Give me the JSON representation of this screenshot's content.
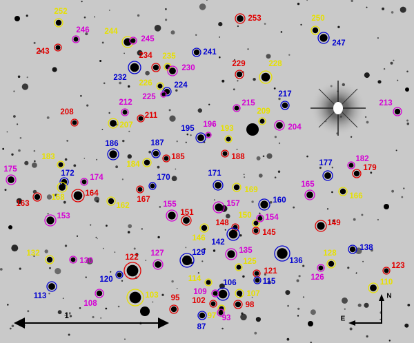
{
  "markers": [
    {
      "label": "252",
      "color": "#e6e000"
    },
    {
      "label": "246",
      "color": "#d400d4"
    },
    {
      "label": "243",
      "color": "#e00000"
    },
    {
      "label": "244",
      "color": "#e6e000"
    },
    {
      "label": "245",
      "color": "#d400d4"
    },
    {
      "label": "253",
      "color": "#e00000"
    },
    {
      "label": "250",
      "color": "#e6e000"
    },
    {
      "label": "247",
      "color": "#0000d0"
    },
    {
      "label": "241",
      "color": "#0000d0"
    },
    {
      "label": "234",
      "color": "#e00000"
    },
    {
      "label": "235",
      "color": "#e6e000"
    },
    {
      "label": "230",
      "color": "#d400d4"
    },
    {
      "label": "229",
      "color": "#e00000"
    },
    {
      "label": "228",
      "color": "#e6e000"
    },
    {
      "label": "232",
      "color": "#0000d0"
    },
    {
      "label": "226",
      "color": "#e6e000"
    },
    {
      "label": "224",
      "color": "#0000d0"
    },
    {
      "label": "225",
      "color": "#d400d4"
    },
    {
      "label": "217",
      "color": "#0000d0"
    },
    {
      "label": "215",
      "color": "#d400d4"
    },
    {
      "label": "212",
      "color": "#d400d4"
    },
    {
      "label": "208",
      "color": "#e00000"
    },
    {
      "label": "211",
      "color": "#e00000"
    },
    {
      "label": "209",
      "color": "#e6e000"
    },
    {
      "label": "204",
      "color": "#d400d4"
    },
    {
      "label": "213",
      "color": "#d400d4"
    },
    {
      "label": "207",
      "color": "#e6e000"
    },
    {
      "label": "196",
      "color": "#d400d4"
    },
    {
      "label": "195",
      "color": "#0000d0"
    },
    {
      "label": "193",
      "color": "#e6e000"
    },
    {
      "label": "186",
      "color": "#0000d0"
    },
    {
      "label": "187",
      "color": "#0000d0"
    },
    {
      "label": "185",
      "color": "#e00000"
    },
    {
      "label": "188",
      "color": "#e00000"
    },
    {
      "label": "183",
      "color": "#e6e000"
    },
    {
      "label": "184",
      "color": "#e6e000"
    },
    {
      "label": "177",
      "color": "#0000d0"
    },
    {
      "label": "182",
      "color": "#d400d4"
    },
    {
      "label": "179",
      "color": "#e00000"
    },
    {
      "label": "175",
      "color": "#d400d4"
    },
    {
      "label": "172",
      "color": "#0000d0"
    },
    {
      "label": "174",
      "color": "#d400d4"
    },
    {
      "label": "171",
      "color": "#0000d0"
    },
    {
      "label": "170",
      "color": "#0000d0"
    },
    {
      "label": "169",
      "color": "#e6e000"
    },
    {
      "label": "165",
      "color": "#d400d4"
    },
    {
      "label": "166",
      "color": "#e6e000"
    },
    {
      "label": "168",
      "color": "#e6e000"
    },
    {
      "label": "164",
      "color": "#e00000"
    },
    {
      "label": "163",
      "color": "#e00000"
    },
    {
      "label": "167",
      "color": "#e00000"
    },
    {
      "label": "162",
      "color": "#e6e000"
    },
    {
      "label": "160",
      "color": "#0000d0"
    },
    {
      "label": "155",
      "color": "#d400d4"
    },
    {
      "label": "151",
      "color": "#e00000"
    },
    {
      "label": "157",
      "color": "#d400d4"
    },
    {
      "label": "150",
      "color": "#e6e000"
    },
    {
      "label": "154",
      "color": "#d400d4"
    },
    {
      "label": "153",
      "color": "#d400d4"
    },
    {
      "label": "149",
      "color": "#e00000"
    },
    {
      "label": "148",
      "color": "#e00000"
    },
    {
      "label": "146",
      "color": "#e6e000"
    },
    {
      "label": "145",
      "color": "#e00000"
    },
    {
      "label": "142",
      "color": "#0000d0"
    },
    {
      "label": "135",
      "color": "#d400d4"
    },
    {
      "label": "136",
      "color": "#0000d0"
    },
    {
      "label": "138",
      "color": "#0000d0"
    },
    {
      "label": "128",
      "color": "#e6e000"
    },
    {
      "label": "132",
      "color": "#e6e000"
    },
    {
      "label": "130",
      "color": "#d400d4"
    },
    {
      "label": "122",
      "color": "#e00000"
    },
    {
      "label": "127",
      "color": "#d400d4"
    },
    {
      "label": "129",
      "color": "#0000d0"
    },
    {
      "label": "125",
      "color": "#e6e000"
    },
    {
      "label": "126",
      "color": "#d400d4"
    },
    {
      "label": "121",
      "color": "#e00000"
    },
    {
      "label": "123",
      "color": "#e00000"
    },
    {
      "label": "120",
      "color": "#0000d0"
    },
    {
      "label": "115",
      "color": "#0000d0"
    },
    {
      "label": "114",
      "color": "#e6e000"
    },
    {
      "label": "106",
      "color": "#0000d0"
    },
    {
      "label": "113",
      "color": "#0000d0"
    },
    {
      "label": "110",
      "color": "#e6e000"
    },
    {
      "label": "109",
      "color": "#d400d4"
    },
    {
      "label": "107",
      "color": "#e6e000"
    },
    {
      "label": "103",
      "color": "#e6e000"
    },
    {
      "label": "108",
      "color": "#d400d4"
    },
    {
      "label": "95",
      "color": "#e00000"
    },
    {
      "label": "102",
      "color": "#e00000"
    },
    {
      "label": "98",
      "color": "#e00000"
    },
    {
      "label": "97",
      "color": "#e6e000"
    },
    {
      "label": "93",
      "color": "#d400d4"
    },
    {
      "label": "87",
      "color": "#0000d0"
    }
  ],
  "scale_bar": {
    "label": "1'"
  },
  "compass": {
    "north": "N",
    "east": "E"
  }
}
